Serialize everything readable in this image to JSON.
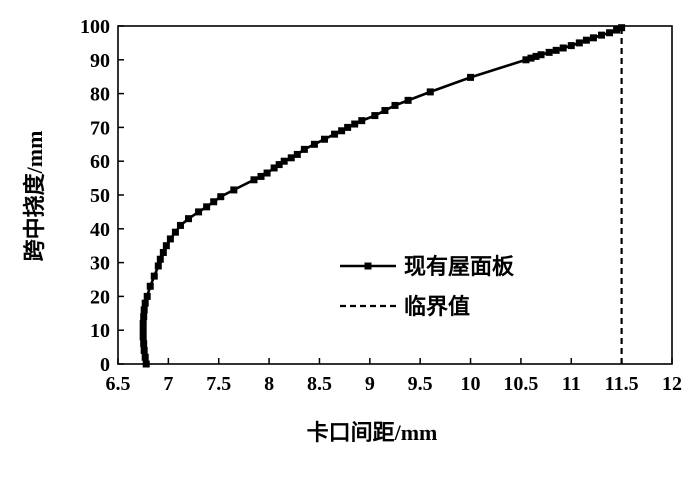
{
  "chart_data": {
    "type": "line",
    "xlabel": "卡口间距/mm",
    "ylabel": "跨中挠度/mm",
    "xlim": [
      6.5,
      12
    ],
    "ylim": [
      0,
      100
    ],
    "x_ticks": [
      "6.5",
      "7",
      "7.5",
      "8",
      "8.5",
      "9",
      "9.5",
      "10",
      "10.5",
      "11",
      "11.5",
      "12"
    ],
    "y_ticks": [
      "0",
      "10",
      "20",
      "30",
      "40",
      "50",
      "60",
      "70",
      "80",
      "90",
      "100"
    ],
    "grid": false,
    "legend_position": "center-right",
    "series": [
      {
        "name": "现有屋面板",
        "style": "solid-square-markers",
        "color": "#000000",
        "x": [
          6.78,
          6.77,
          6.76,
          6.755,
          6.75,
          6.75,
          6.75,
          6.755,
          6.76,
          6.77,
          6.79,
          6.82,
          6.86,
          6.9,
          6.92,
          6.95,
          6.98,
          7.02,
          7.07,
          7.12,
          7.2,
          7.3,
          7.38,
          7.45,
          7.52,
          7.65,
          7.85,
          7.92,
          7.98,
          8.05,
          8.1,
          8.15,
          8.22,
          8.28,
          8.35,
          8.45,
          8.55,
          8.65,
          8.72,
          8.78,
          8.85,
          8.92,
          9.05,
          9.15,
          9.25,
          9.38,
          9.6,
          10.0,
          10.55,
          10.6,
          10.65,
          10.7,
          10.78,
          10.85,
          10.92,
          11.0,
          11.08,
          11.15,
          11.22,
          11.3,
          11.38,
          11.45,
          11.5
        ],
        "y": [
          0,
          2,
          4,
          6,
          8,
          10,
          12,
          14,
          16,
          18,
          20,
          23,
          26,
          29,
          31,
          33,
          35,
          37,
          39,
          41,
          43,
          45,
          46.5,
          48,
          49.5,
          51.5,
          54.5,
          55.5,
          56.5,
          58,
          59,
          60,
          61,
          62,
          63.5,
          65,
          66.5,
          68,
          69,
          70,
          71,
          72,
          73.5,
          75,
          76.5,
          78,
          80.5,
          84.8,
          90,
          90.5,
          91,
          91.5,
          92.2,
          92.8,
          93.5,
          94.2,
          95,
          95.8,
          96.5,
          97.3,
          98,
          98.8,
          99.5
        ]
      },
      {
        "name": "临界值",
        "style": "dashed",
        "color": "#000000",
        "x": [
          11.5,
          11.5
        ],
        "y": [
          0,
          100
        ]
      }
    ]
  }
}
